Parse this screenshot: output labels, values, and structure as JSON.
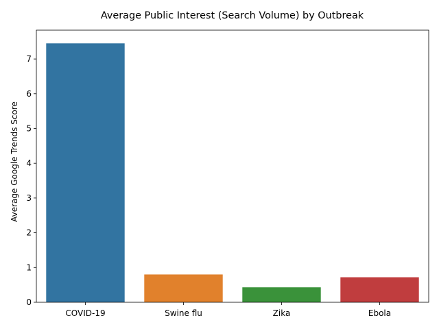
{
  "chart_data": {
    "type": "bar",
    "title": "Average Public Interest (Search Volume) by Outbreak",
    "xlabel": "",
    "ylabel": "Average Google Trends Score",
    "categories": [
      "COVID-19",
      "Swine flu",
      "Zika",
      "Ebola"
    ],
    "values": [
      7.45,
      0.8,
      0.43,
      0.72
    ],
    "colors": [
      "#3274a1",
      "#e1812c",
      "#3a923a",
      "#c03d3e"
    ],
    "ylim": [
      0,
      7.83
    ],
    "yticks": [
      0,
      1,
      2,
      3,
      4,
      5,
      6,
      7
    ],
    "grid": false,
    "legend": "none"
  }
}
